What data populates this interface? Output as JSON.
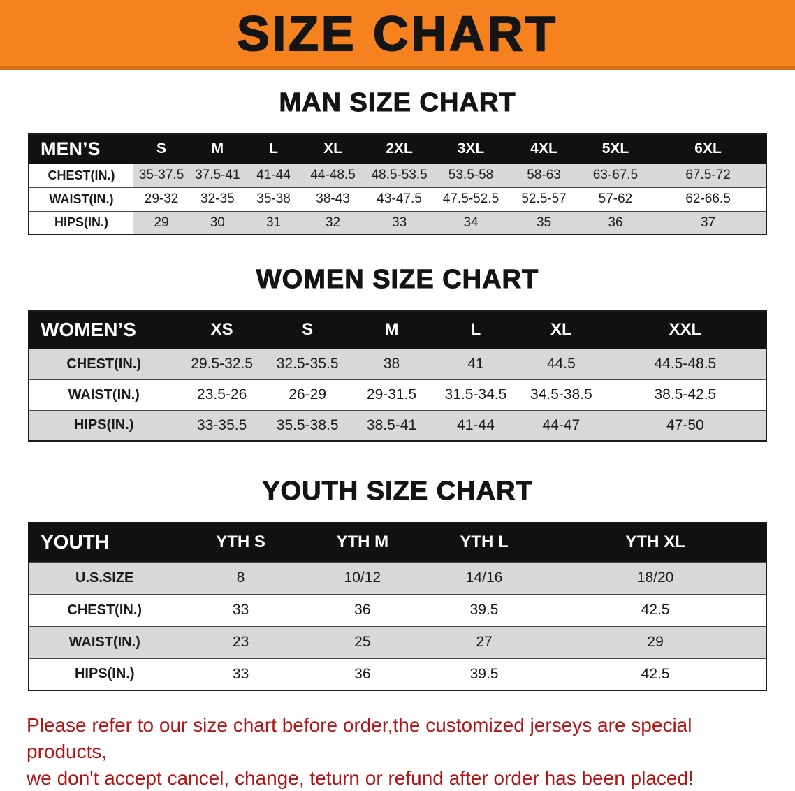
{
  "banner": {
    "title": "SIZE CHART"
  },
  "sections": [
    {
      "heading": "MAN SIZE CHART",
      "table": {
        "corner": "MEN’S",
        "columns": [
          "S",
          "M",
          "L",
          "XL",
          "2XL",
          "3XL",
          "4XL",
          "5XL",
          "6XL"
        ],
        "rows": [
          {
            "label": "CHEST(IN.)",
            "values": [
              "35-37.5",
              "37.5-41",
              "41-44",
              "44-48.5",
              "48.5-53.5",
              "53.5-58",
              "58-63",
              "63-67.5",
              "67.5-72"
            ]
          },
          {
            "label": "WAIST(IN.)",
            "values": [
              "29-32",
              "32-35",
              "35-38",
              "38-43",
              "43-47.5",
              "47.5-52.5",
              "52.5-57",
              "57-62",
              "62-66.5"
            ]
          },
          {
            "label": "HIPS(IN.)",
            "values": [
              "29",
              "30",
              "31",
              "32",
              "33",
              "34",
              "35",
              "36",
              "37"
            ]
          }
        ]
      }
    },
    {
      "heading": "WOMEN SIZE CHART",
      "table": {
        "corner": "WOMEN’S",
        "columns": [
          "XS",
          "S",
          "M",
          "L",
          "XL",
          "XXL"
        ],
        "rows": [
          {
            "label": "CHEST(IN.)",
            "values": [
              "29.5-32.5",
              "32.5-35.5",
              "38",
              "41",
              "44.5",
              "44.5-48.5"
            ]
          },
          {
            "label": "WAIST(IN.)",
            "values": [
              "23.5-26",
              "26-29",
              "29-31.5",
              "31.5-34.5",
              "34.5-38.5",
              "38.5-42.5"
            ]
          },
          {
            "label": "HIPS(IN.)",
            "values": [
              "33-35.5",
              "35.5-38.5",
              "38.5-41",
              "41-44",
              "44-47",
              "47-50"
            ]
          }
        ]
      }
    },
    {
      "heading": "YOUTH SIZE CHART",
      "table": {
        "corner": "YOUTH",
        "columns": [
          "YTH S",
          "YTH M",
          "YTH L",
          "YTH XL"
        ],
        "rows": [
          {
            "label": "U.S.SIZE",
            "values": [
              "8",
              "10/12",
              "14/16",
              "18/20"
            ]
          },
          {
            "label": "CHEST(IN.)",
            "values": [
              "33",
              "36",
              "39.5",
              "42.5"
            ]
          },
          {
            "label": "WAIST(IN.)",
            "values": [
              "23",
              "25",
              "27",
              "29"
            ]
          },
          {
            "label": "HIPS(IN.)",
            "values": [
              "33",
              "36",
              "39.5",
              "42.5"
            ]
          }
        ]
      }
    }
  ],
  "footer": {
    "line1": "Please refer to our size chart before order,the customized jerseys are special products,",
    "line2": "we don't accept cancel, change, teturn or refund after order has been placed!"
  },
  "colors": {
    "banner_bg": "#f5821f",
    "banner_edge": "#d96e12",
    "table_header_bg": "#111111",
    "row_gray": "#d8d8d8",
    "footer_red": "#b31414"
  }
}
